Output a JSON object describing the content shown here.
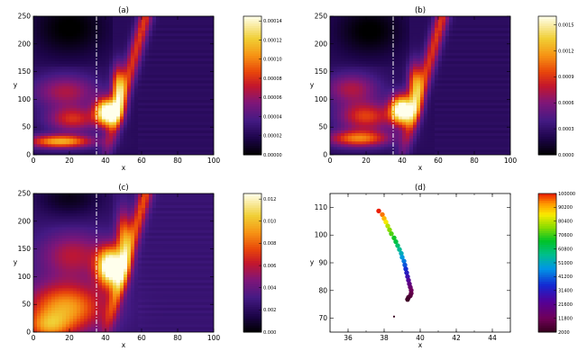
{
  "chart_data": [
    {
      "type": "heatmap",
      "title": "(a)",
      "xlabel": "x",
      "ylabel": "y",
      "xlim": [
        0,
        100
      ],
      "ylim": [
        0,
        250
      ],
      "xticks": [
        "0",
        "20",
        "40",
        "60",
        "80",
        "100"
      ],
      "yticks": [
        "0",
        "50",
        "100",
        "150",
        "200",
        "250"
      ],
      "colormap": "hot",
      "colorbar_ticks": [
        "0.00000",
        "0.00002",
        "0.00004",
        "0.00006",
        "0.00008",
        "0.00010",
        "0.00012",
        "0.00014"
      ],
      "colorbar_range": [
        0,
        0.000145
      ],
      "dashed_line_x": 35
    },
    {
      "type": "heatmap",
      "title": "(b)",
      "xlabel": "x",
      "ylabel": "y",
      "xlim": [
        0,
        100
      ],
      "ylim": [
        0,
        250
      ],
      "xticks": [
        "0",
        "20",
        "40",
        "60",
        "80",
        "100"
      ],
      "yticks": [
        "0",
        "50",
        "100",
        "150",
        "200",
        "250"
      ],
      "colormap": "hot",
      "colorbar_ticks": [
        "0.0000",
        "0.0003",
        "0.0006",
        "0.0009",
        "0.0012",
        "0.0015"
      ],
      "colorbar_range": [
        0,
        0.0016
      ],
      "dashed_line_x": 35
    },
    {
      "type": "heatmap",
      "title": "(c)",
      "xlabel": "x",
      "ylabel": "y",
      "xlim": [
        0,
        100
      ],
      "ylim": [
        0,
        250
      ],
      "xticks": [
        "0",
        "20",
        "40",
        "60",
        "80",
        "100"
      ],
      "yticks": [
        "0",
        "50",
        "100",
        "150",
        "200",
        "250"
      ],
      "colormap": "hot",
      "colorbar_ticks": [
        "0.000",
        "0.002",
        "0.004",
        "0.006",
        "0.008",
        "0.010",
        "0.012"
      ],
      "colorbar_range": [
        0,
        0.0125
      ],
      "dashed_line_x": 35
    },
    {
      "type": "scatter",
      "title": "(d)",
      "xlabel": "x",
      "ylabel": "y",
      "xlim": [
        35,
        45
      ],
      "ylim": [
        65,
        115
      ],
      "xticks": [
        "36",
        "38",
        "40",
        "42",
        "44"
      ],
      "yticks": [
        "70",
        "80",
        "90",
        "100",
        "110"
      ],
      "colormap": "rainbow",
      "colorbar_ticks": [
        "2000",
        "11800",
        "21600",
        "31400",
        "41200",
        "51000",
        "60800",
        "70600",
        "80400",
        "90200",
        "100000"
      ],
      "colorbar_range": [
        2000,
        100000
      ],
      "points": [
        {
          "x": 37.7,
          "y": 108.7,
          "c": 100000
        },
        {
          "x": 37.9,
          "y": 107.4,
          "c": 95000
        },
        {
          "x": 38.0,
          "y": 106.0,
          "c": 90000
        },
        {
          "x": 38.1,
          "y": 104.7,
          "c": 85000
        },
        {
          "x": 38.2,
          "y": 103.3,
          "c": 80000
        },
        {
          "x": 38.3,
          "y": 101.9,
          "c": 76000
        },
        {
          "x": 38.4,
          "y": 100.5,
          "c": 72000
        },
        {
          "x": 38.55,
          "y": 99.0,
          "c": 68000
        },
        {
          "x": 38.65,
          "y": 97.6,
          "c": 64000
        },
        {
          "x": 38.75,
          "y": 96.2,
          "c": 60000
        },
        {
          "x": 38.85,
          "y": 94.8,
          "c": 56000
        },
        {
          "x": 38.95,
          "y": 93.4,
          "c": 52000
        },
        {
          "x": 39.0,
          "y": 92.0,
          "c": 48000
        },
        {
          "x": 39.1,
          "y": 90.6,
          "c": 44000
        },
        {
          "x": 39.15,
          "y": 89.2,
          "c": 40000
        },
        {
          "x": 39.2,
          "y": 87.8,
          "c": 36000
        },
        {
          "x": 39.25,
          "y": 86.4,
          "c": 32000
        },
        {
          "x": 39.3,
          "y": 85.0,
          "c": 28000
        },
        {
          "x": 39.35,
          "y": 83.7,
          "c": 24000
        },
        {
          "x": 39.4,
          "y": 82.4,
          "c": 20000
        },
        {
          "x": 39.45,
          "y": 81.2,
          "c": 16000
        },
        {
          "x": 39.5,
          "y": 80.1,
          "c": 13000
        },
        {
          "x": 39.5,
          "y": 79.0,
          "c": 10000
        },
        {
          "x": 39.45,
          "y": 78.1,
          "c": 8000
        },
        {
          "x": 39.35,
          "y": 77.5,
          "c": 6000
        },
        {
          "x": 39.3,
          "y": 76.8,
          "c": 4000
        },
        {
          "x": 38.55,
          "y": 70.6,
          "c": 2000
        }
      ]
    }
  ]
}
